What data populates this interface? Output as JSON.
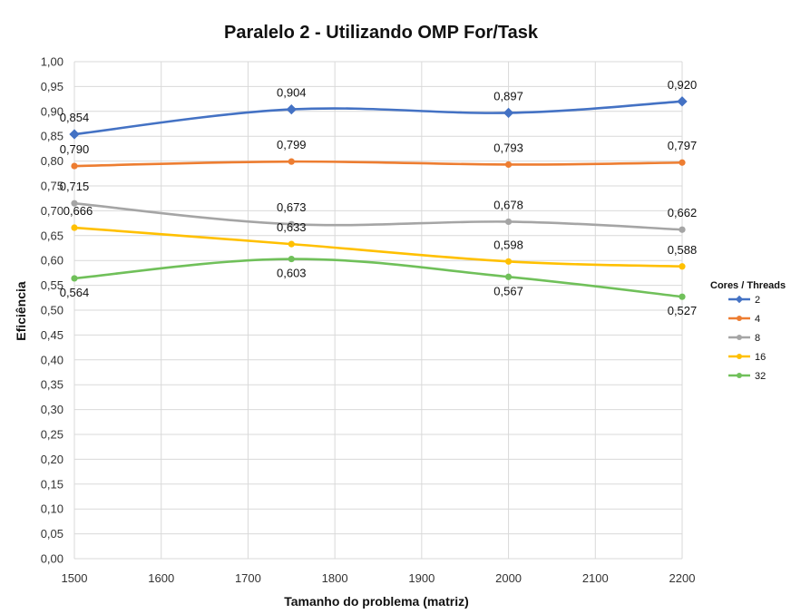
{
  "chart_data": {
    "type": "line",
    "title": "Paralelo 2 - Utilizando OMP For/Task",
    "xlabel": "Tamanho do problema (matriz)",
    "ylabel": "Eficiência",
    "x": [
      1500,
      1750,
      2000,
      2200
    ],
    "xlim": [
      1500,
      2200
    ],
    "xticks": [
      "1500",
      "1600",
      "1700",
      "1800",
      "1900",
      "2000",
      "2100",
      "2200"
    ],
    "ylim": [
      0,
      1
    ],
    "yticks": [
      "0,00",
      "0,05",
      "0,10",
      "0,15",
      "0,20",
      "0,25",
      "0,30",
      "0,35",
      "0,40",
      "0,45",
      "0,50",
      "0,55",
      "0,60",
      "0,65",
      "0,70",
      "0,75",
      "0,80",
      "0,85",
      "0,90",
      "0,95",
      "1,00"
    ],
    "grid": true,
    "legend_title": "Cores / Threads",
    "legend_position": "right",
    "series": [
      {
        "name": "2",
        "color": "#4472C4",
        "values": [
          0.854,
          0.904,
          0.897,
          0.92
        ],
        "labels": [
          "0,854",
          "0,904",
          "0,897",
          "0,920"
        ]
      },
      {
        "name": "4",
        "color": "#ED7D31",
        "values": [
          0.79,
          0.799,
          0.793,
          0.797
        ],
        "labels": [
          "0,790",
          "0,799",
          "0,793",
          "0,797"
        ]
      },
      {
        "name": "8",
        "color": "#A5A5A5",
        "values": [
          0.715,
          0.673,
          0.678,
          0.662
        ],
        "labels": [
          "0,715",
          "0,673",
          "0,678",
          "0,662"
        ]
      },
      {
        "name": "16",
        "color": "#FFC000",
        "values": [
          0.666,
          0.633,
          0.598,
          0.588
        ],
        "labels": [
          "0,666",
          "0,633",
          "0,598",
          "0,588"
        ]
      },
      {
        "name": "32",
        "color": "#70C05A",
        "values": [
          0.564,
          0.603,
          0.567,
          0.527
        ],
        "labels": [
          "0,564",
          "0,603",
          "0,567",
          "0,527"
        ]
      }
    ]
  }
}
